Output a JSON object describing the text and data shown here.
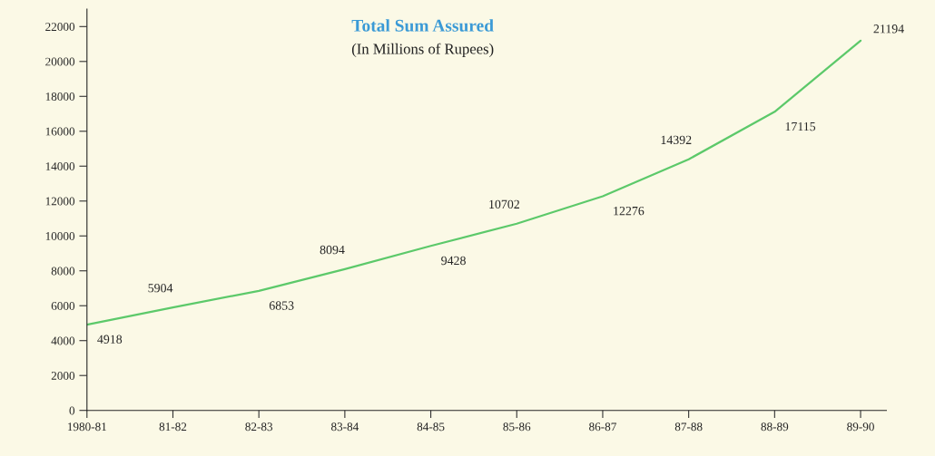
{
  "chart_data": {
    "type": "line",
    "title": "Total Sum Assured",
    "subtitle": "(In Millions of Rupees)",
    "categories": [
      "1980-81",
      "81-82",
      "82-83",
      "83-84",
      "84-85",
      "85-86",
      "86-87",
      "87-88",
      "88-89",
      "89-90"
    ],
    "series": [
      {
        "color": "#5cc96a",
        "values": [
          4918,
          5904,
          6853,
          8094,
          9428,
          10702,
          12276,
          14392,
          17115,
          21194
        ]
      }
    ],
    "ylim": [
      0,
      23000
    ],
    "yticks": [
      0,
      2000,
      4000,
      6000,
      8000,
      10000,
      12000,
      14000,
      16000,
      18000,
      20000,
      22000
    ],
    "data_labels": true,
    "grid": false,
    "marker": "none",
    "line_style": "solid"
  }
}
